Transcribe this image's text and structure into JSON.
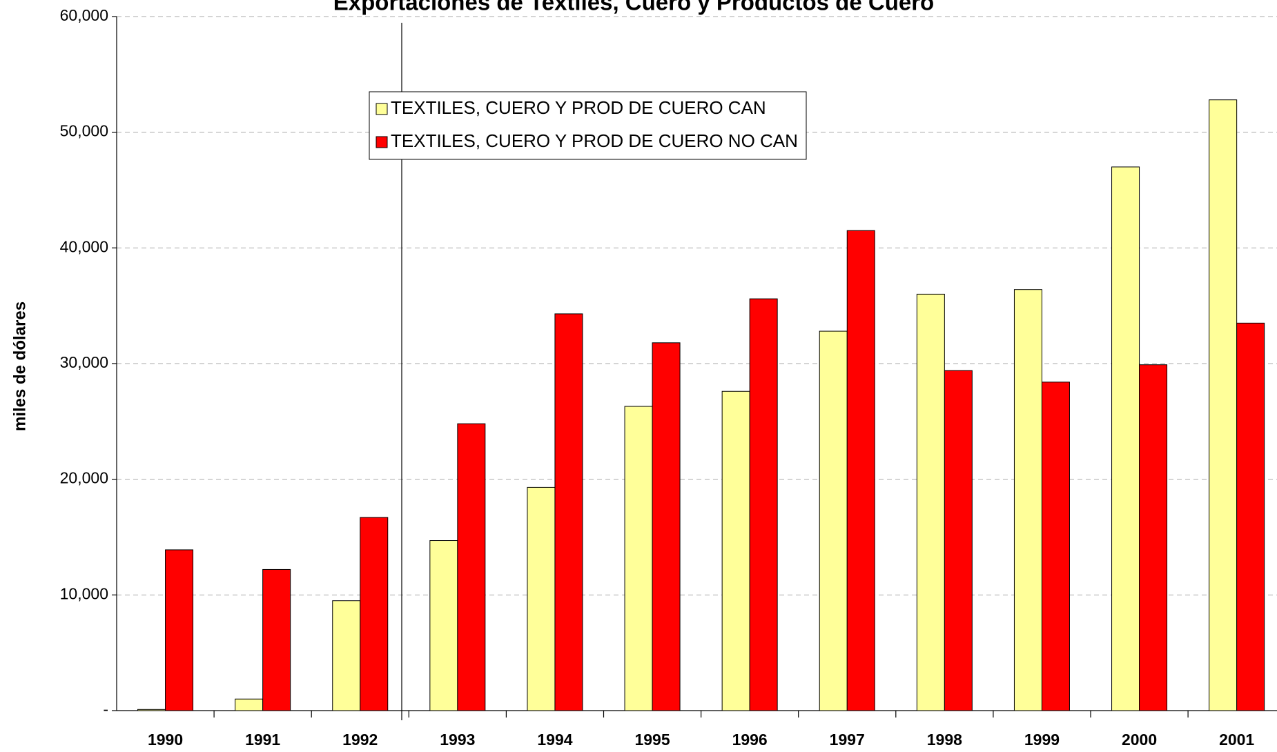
{
  "chart_data": {
    "type": "bar",
    "title": "Exportaciones de Textiles, Cuero y Productos de Cuero",
    "y_label": "miles de dólares",
    "categories": [
      "1990",
      "1991",
      "1992",
      "1993",
      "1994",
      "1995",
      "1996",
      "1997",
      "1998",
      "1999",
      "2000",
      "2001"
    ],
    "series": [
      {
        "name": "TEXTILES, CUERO Y PROD DE CUERO CAN",
        "color": "#ffff99",
        "values": [
          100,
          1000,
          9500,
          14700,
          19300,
          26300,
          27600,
          32800,
          36000,
          36400,
          47000,
          52800
        ]
      },
      {
        "name": "TEXTILES, CUERO Y PROD DE CUERO NO CAN",
        "color": "#ff0000",
        "values": [
          13900,
          12200,
          16700,
          24800,
          34300,
          31800,
          35600,
          41500,
          29400,
          28400,
          29900,
          33500
        ]
      }
    ],
    "ylim": [
      0,
      60000
    ],
    "yticks": [
      {
        "value": 0,
        "label": "-"
      },
      {
        "value": 10000,
        "label": "10,000"
      },
      {
        "value": 20000,
        "label": "20,000"
      },
      {
        "value": 30000,
        "label": "30,000"
      },
      {
        "value": 40000,
        "label": "40,000"
      },
      {
        "value": 50000,
        "label": "50,000"
      },
      {
        "value": 60000,
        "label": "60,000"
      }
    ],
    "grid": true
  }
}
